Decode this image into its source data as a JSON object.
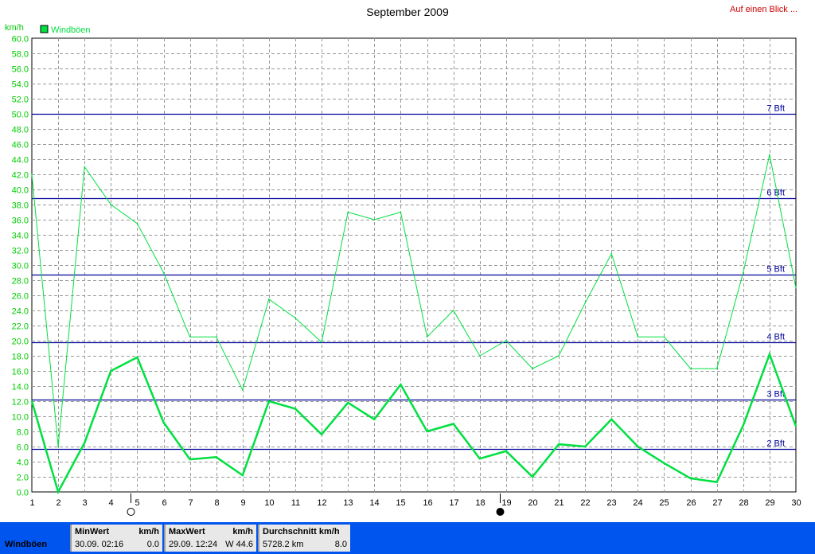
{
  "link_text": "Auf einen Blick ...",
  "chart_data": {
    "type": "line",
    "title": "September 2009",
    "ylabel": "km/h",
    "xlabel": "",
    "ylim": [
      0,
      60
    ],
    "y_tick_step": 2,
    "xlim": [
      1,
      30
    ],
    "grid": true,
    "legend_position": "top-left",
    "x": [
      1,
      2,
      3,
      4,
      5,
      6,
      7,
      8,
      9,
      10,
      11,
      12,
      13,
      14,
      15,
      16,
      17,
      18,
      19,
      20,
      21,
      22,
      23,
      24,
      25,
      26,
      27,
      28,
      29,
      30
    ],
    "series": [
      {
        "name": "Windböen",
        "color": "#00e040",
        "style": "thin",
        "values": [
          42.0,
          6.0,
          43.0,
          38.0,
          35.5,
          29.0,
          20.5,
          20.5,
          13.5,
          25.5,
          23.0,
          19.8,
          37.0,
          36.0,
          37.0,
          20.5,
          24.0,
          18.0,
          20.0,
          16.3,
          18.0,
          25.0,
          31.5,
          20.5,
          20.5,
          16.3,
          16.3,
          29.0,
          44.6,
          27.0
        ]
      },
      {
        "name": "",
        "color": "#00e040",
        "style": "thick",
        "values": [
          12.0,
          0.0,
          6.5,
          16.0,
          17.8,
          9.2,
          4.3,
          4.6,
          2.2,
          12.0,
          11.0,
          7.6,
          11.8,
          9.6,
          14.2,
          8.0,
          9.0,
          4.4,
          5.4,
          2.0,
          6.3,
          6.0,
          9.6,
          6.0,
          3.8,
          1.8,
          1.3,
          8.8,
          18.2,
          8.7
        ]
      }
    ],
    "reference_lines": [
      {
        "label": "2 Bft",
        "value": 5.7
      },
      {
        "label": "3 Bft",
        "value": 12.2
      },
      {
        "label": "4 Bft",
        "value": 19.8
      },
      {
        "label": "5 Bft",
        "value": 28.7
      },
      {
        "label": "6 Bft",
        "value": 38.8
      },
      {
        "label": "7 Bft",
        "value": 50.0
      }
    ],
    "moon_markers": [
      {
        "day": 5,
        "phase": "full"
      },
      {
        "day": 19,
        "phase": "new"
      }
    ],
    "colors": {
      "axis_text": "#00cc00",
      "reference_line": "#000099",
      "grid": "#999999"
    }
  },
  "stats": {
    "series_name": "Windböen",
    "min": {
      "header": "MinWert",
      "unit": "km/h",
      "datetime": "30.09.  02:16",
      "value": "0.0"
    },
    "max": {
      "header": "MaxWert",
      "unit": "km/h",
      "datetime": "29.09.  12:24",
      "value": "W  44.6"
    },
    "avg": {
      "header": "Durchschnitt km/h",
      "distance": "5728.2 km",
      "value": "8.0"
    }
  }
}
